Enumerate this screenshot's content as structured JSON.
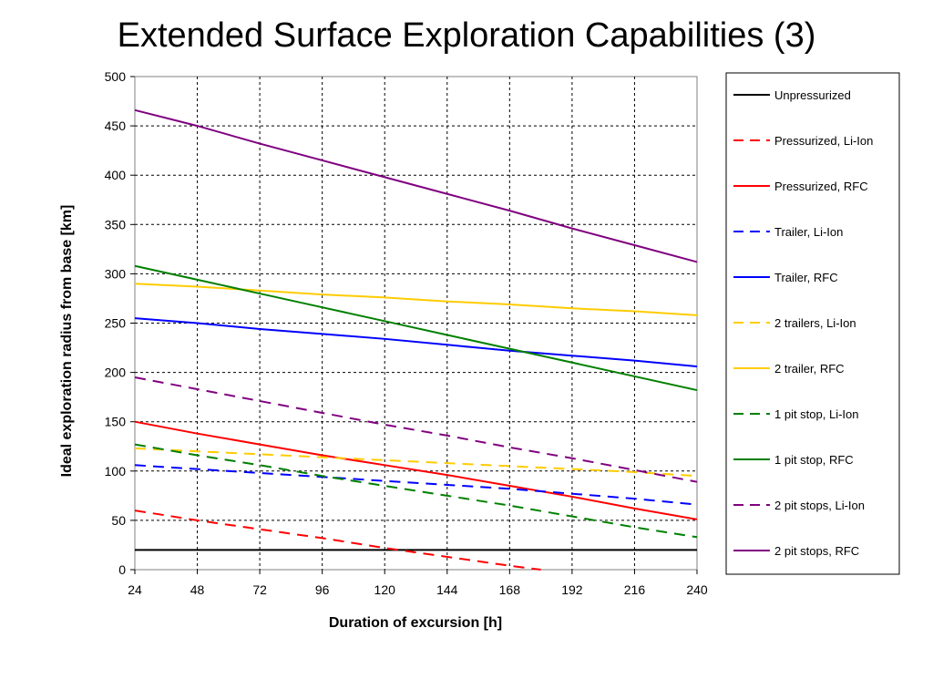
{
  "title": "Extended Surface Exploration Capabilities (3)",
  "chart_data": {
    "type": "line",
    "title": "Extended Surface Exploration Capabilities (3)",
    "xlabel": "Duration of excursion [h]",
    "ylabel": "Ideal exploration radius from base [km]",
    "xlim": [
      24,
      240
    ],
    "ylim": [
      0,
      500
    ],
    "x_ticks": [
      24,
      48,
      72,
      96,
      120,
      144,
      168,
      192,
      216,
      240
    ],
    "y_ticks": [
      0,
      50,
      100,
      150,
      200,
      250,
      300,
      350,
      400,
      450,
      500
    ],
    "grid": true,
    "legend_position": "right",
    "x": [
      24,
      48,
      72,
      96,
      120,
      144,
      168,
      192,
      216,
      240
    ],
    "series": [
      {
        "name": "Unpressurized",
        "color": "#000000",
        "dashed": false,
        "values": [
          20,
          20,
          20,
          20,
          20,
          20,
          20,
          20,
          20,
          20
        ]
      },
      {
        "name": "Pressurized, Li-Ion",
        "color": "#ff0000",
        "dashed": true,
        "values": [
          60,
          50,
          41,
          32,
          22,
          13,
          4,
          null,
          null,
          null
        ],
        "end_point": [
          180,
          0
        ]
      },
      {
        "name": "Pressurized, RFC",
        "color": "#ff0000",
        "dashed": false,
        "values": [
          150,
          138,
          127,
          116,
          106,
          96,
          85,
          74,
          62,
          51
        ]
      },
      {
        "name": "Trailer, Li-Ion",
        "color": "#0000ff",
        "dashed": true,
        "values": [
          106,
          102,
          98,
          94,
          90,
          86,
          82,
          77,
          72,
          66
        ]
      },
      {
        "name": "Trailer, RFC",
        "color": "#0000ff",
        "dashed": false,
        "values": [
          255,
          250,
          244,
          239,
          234,
          228,
          222,
          217,
          212,
          206
        ]
      },
      {
        "name": "2 trailers, Li-Ion",
        "color": "#ffcc00",
        "dashed": true,
        "values": [
          123,
          120,
          117,
          114,
          111,
          108,
          105,
          102,
          99,
          95
        ]
      },
      {
        "name": "2 trailer, RFC",
        "color": "#ffcc00",
        "dashed": false,
        "values": [
          290,
          287,
          283,
          279,
          276,
          272,
          269,
          265,
          262,
          258
        ]
      },
      {
        "name": "1 pit stop, Li-Ion",
        "color": "#008000",
        "dashed": true,
        "values": [
          127,
          116,
          106,
          95,
          85,
          75,
          65,
          54,
          43,
          33
        ]
      },
      {
        "name": "1 pit stop, RFC",
        "color": "#008000",
        "dashed": false,
        "values": [
          308,
          294,
          280,
          266,
          252,
          238,
          224,
          210,
          196,
          182
        ]
      },
      {
        "name": "2 pit stops, Li-Ion",
        "color": "#800080",
        "dashed": true,
        "values": [
          195,
          183,
          171,
          159,
          147,
          136,
          124,
          113,
          101,
          89
        ]
      },
      {
        "name": "2 pit stops, RFC",
        "color": "#800080",
        "dashed": false,
        "values": [
          466,
          450,
          432,
          415,
          398,
          381,
          364,
          346,
          329,
          312
        ]
      }
    ]
  }
}
